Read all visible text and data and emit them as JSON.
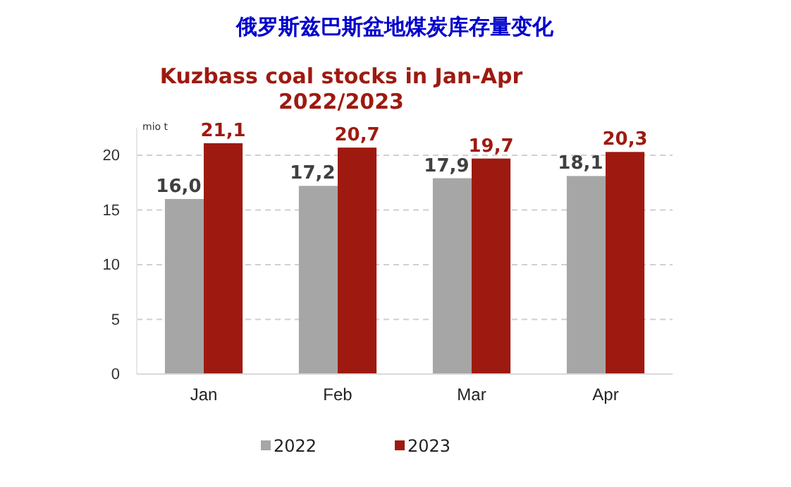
{
  "chart_data": {
    "type": "bar",
    "title": "俄罗斯兹巴斯盆地煤炭库存量变化",
    "subtitle": "Kuzbass coal stocks in Jan-Apr\n2022/2023",
    "ylabel": "mio t",
    "categories": [
      "Jan",
      "Feb",
      "Mar",
      "Apr"
    ],
    "series": [
      {
        "name": "2022",
        "color": "#a6a6a6",
        "values": [
          16.0,
          17.2,
          17.9,
          18.1
        ],
        "value_labels": [
          "16,0",
          "17,2",
          "17,9",
          "18,1"
        ]
      },
      {
        "name": "2023",
        "color": "#9e1a10",
        "values": [
          21.1,
          20.7,
          19.7,
          20.3
        ],
        "value_labels": [
          "21,1",
          "20,7",
          "19,7",
          "20,3"
        ]
      }
    ],
    "ylim": [
      0,
      22.5
    ],
    "yticks": [
      0,
      5,
      10,
      15,
      20
    ],
    "grid": "y",
    "legend": "bottom"
  }
}
